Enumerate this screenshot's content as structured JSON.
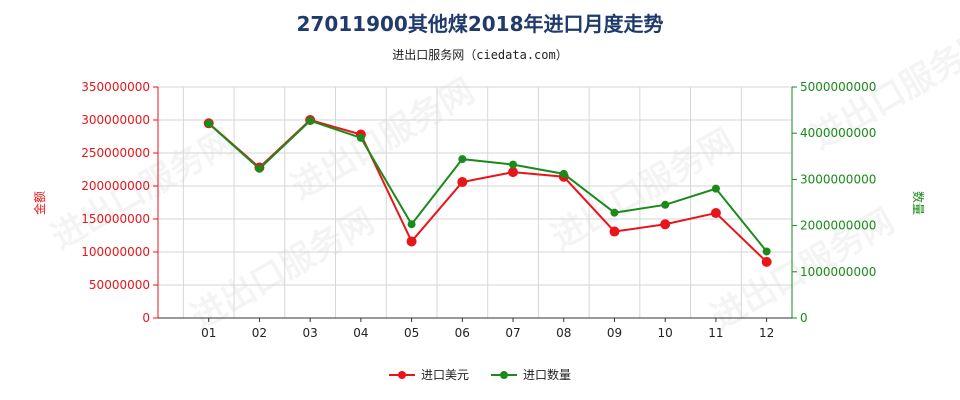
{
  "title": "27011900其他煤2018年进口月度走势",
  "subtitle": "进出口服务网（ciedata.com）",
  "watermark": "进出口服务网",
  "colors": {
    "value": "#e8151b",
    "quantity": "#1a8a1a",
    "grid": "#d6d6d6"
  },
  "chart_data": {
    "type": "line",
    "categories": [
      "01",
      "02",
      "03",
      "04",
      "05",
      "06",
      "07",
      "08",
      "09",
      "10",
      "11",
      "12"
    ],
    "left_axis": {
      "label": "金额",
      "ylim": [
        0,
        350000000
      ],
      "ticks": [
        "0",
        "50000000",
        "100000000",
        "150000000",
        "200000000",
        "250000000",
        "300000000",
        "350000000"
      ]
    },
    "right_axis": {
      "label": "数量",
      "ylim": [
        0,
        5000000000
      ],
      "ticks": [
        "0",
        "1000000000",
        "2000000000",
        "3000000000",
        "4000000000",
        "5000000000"
      ]
    },
    "series": [
      {
        "name": "进口美元",
        "axis": "left",
        "color": "#e8151b",
        "values": [
          295000000,
          228000000,
          300000000,
          278000000,
          116000000,
          206000000,
          221000000,
          214000000,
          131000000,
          142000000,
          159000000,
          85000000
        ]
      },
      {
        "name": "进口数量",
        "axis": "right",
        "color": "#1a8a1a",
        "values": [
          4210000000,
          3230000000,
          4270000000,
          3900000000,
          2030000000,
          3440000000,
          3320000000,
          3120000000,
          2280000000,
          2450000000,
          2800000000,
          1440000000
        ]
      }
    ],
    "grid": true,
    "legend_position": "bottom-center"
  }
}
